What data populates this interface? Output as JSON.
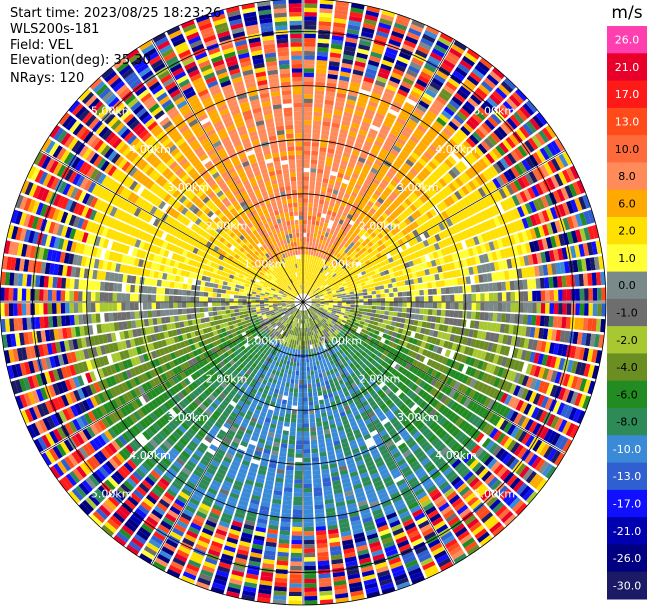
{
  "header": {
    "start_time": "Start time: 2023/08/25 18:23:26",
    "instrument": "WLS200s-181",
    "field": "Field: VEL",
    "elevation": "Elevation(deg): 35.30",
    "nrays": "NRays: 120"
  },
  "chart_data": {
    "type": "heatmap",
    "projection": "polar-ppi",
    "field": "VEL",
    "units": "m/s",
    "nrays": 120,
    "elevation_deg": 35.3,
    "range_rings_km": [
      1.0,
      2.0,
      3.0,
      4.0,
      5.0
    ],
    "ring_labels": [
      "1.00km",
      "2.00km",
      "3.00km",
      "4.00km",
      "5.00km"
    ],
    "max_range_km": 5.6,
    "radial_spokes_deg": [
      0,
      30,
      60,
      90,
      120,
      150,
      180,
      210,
      240,
      270,
      300,
      330
    ],
    "colorbar": {
      "label": "m/s",
      "ticks": [
        26.0,
        21.0,
        17.0,
        13.0,
        10.0,
        8.0,
        6.0,
        2.0,
        1.0,
        0.0,
        -1.0,
        -2.0,
        -4.0,
        -6.0,
        -8.0,
        -10.0,
        -13.0,
        -17.0,
        -21.0,
        -26.0,
        -30.0
      ],
      "tick_labels": [
        "26.0",
        "21.0",
        "17.0",
        "13.0",
        "10.0",
        "8.0",
        "6.0",
        "2.0",
        "1.0",
        "0.0",
        "-1.0",
        "-2.0",
        "-4.0",
        "-6.0",
        "-8.0",
        "-10.0",
        "-13.0",
        "-17.0",
        "-21.0",
        "-26.0",
        "-30.0"
      ],
      "colors": [
        "#ff3fb0",
        "#e8002a",
        "#ff1a1a",
        "#ff4a1a",
        "#ff6a3a",
        "#ff8a5a",
        "#ffaa00",
        "#ffe000",
        "#ffff33",
        "#7a8a8a",
        "#6e6e6e",
        "#a8c832",
        "#6b8e23",
        "#228b22",
        "#2e8b57",
        "#3a8ad8",
        "#2f5fd0",
        "#1010ff",
        "#0000b0",
        "#000080",
        "#1a1a66"
      ]
    },
    "velocity_pattern": {
      "north_sector": "6.0 to 10.0",
      "near_center": "0.0 to 2.0",
      "east_west": "-1.0 to 1.0",
      "south_sector": "-6.0 to -10.0",
      "outer_ring_km": 4.3,
      "outer": "noise"
    }
  }
}
